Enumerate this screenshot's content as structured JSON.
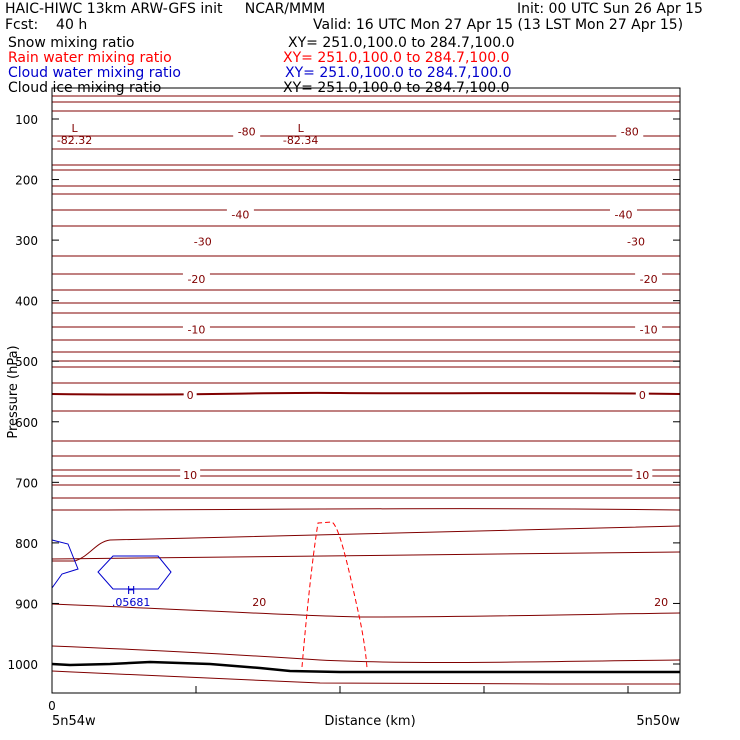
{
  "header": {
    "title_left": "HAIC-HIWC 13km ARW-GFS init     NCAR/MMM",
    "init": "Init: 00 UTC Sun 26 Apr 15",
    "fcst": "Fcst:    40 h",
    "valid": "Valid: 16 UTC Mon 27 Apr 15 (13 LST Mon 27 Apr 15)"
  },
  "fields": [
    {
      "label": "Snow mixing ratio",
      "xy": "XY= 251.0,100.0 to 284.7,100.0",
      "color": "#000000"
    },
    {
      "label": "Rain water mixing ratio",
      "xy": "XY= 251.0,100.0 to 284.7,100.0",
      "color": "#ff0000"
    },
    {
      "label": "Cloud water mixing ratio",
      "xy": "XY= 251.0,100.0 to 284.7,100.0",
      "color": "#0000cc"
    },
    {
      "label": "Cloud ice mixing ratio",
      "xy": "XY= 251.0,100.0 to 284.7,100.0",
      "color": "#000000"
    }
  ],
  "chart_data": {
    "type": "cross-section contour",
    "ylabel": "Pressure (hPa)",
    "xlabel": "Distance (km)",
    "y_ticks": [
      100,
      200,
      300,
      400,
      500,
      600,
      700,
      800,
      900,
      1000
    ],
    "y_scale": "inverted (pressure)",
    "x_tick_label": "0",
    "x_start_label": "5n54w",
    "x_end_label": "5n50w",
    "temperature_contour_color": "#800000",
    "temperature_labels": [
      {
        "value": "-80",
        "x_frac": 0.31,
        "p": 121
      },
      {
        "value": "-80",
        "x_frac": 0.92,
        "p": 121
      },
      {
        "value": "-40",
        "x_frac": 0.3,
        "p": 258
      },
      {
        "value": "-40",
        "x_frac": 0.91,
        "p": 258
      },
      {
        "value": "-30",
        "x_frac": 0.24,
        "p": 302
      },
      {
        "value": "-30",
        "x_frac": 0.93,
        "p": 302
      },
      {
        "value": "-20",
        "x_frac": 0.23,
        "p": 364
      },
      {
        "value": "-20",
        "x_frac": 0.95,
        "p": 364
      },
      {
        "value": "-10",
        "x_frac": 0.23,
        "p": 448
      },
      {
        "value": "-10",
        "x_frac": 0.95,
        "p": 448
      },
      {
        "value": "0",
        "x_frac": 0.22,
        "p": 556
      },
      {
        "value": "0",
        "x_frac": 0.94,
        "p": 556
      },
      {
        "value": "10",
        "x_frac": 0.22,
        "p": 688
      },
      {
        "value": "10",
        "x_frac": 0.94,
        "p": 688
      },
      {
        "value": "20",
        "x_frac": 0.33,
        "p": 898
      },
      {
        "value": "20",
        "x_frac": 0.97,
        "p": 898
      }
    ],
    "extrema": [
      {
        "kind": "L",
        "value": "82.32",
        "x_frac": 0.02,
        "p": 85
      },
      {
        "kind": "L",
        "value": "82.34",
        "x_frac": 0.38,
        "p": 85
      },
      {
        "kind": "H",
        "value": ".05681",
        "x_frac": 0.11,
        "p": 848,
        "color": "#0000cc"
      }
    ]
  }
}
